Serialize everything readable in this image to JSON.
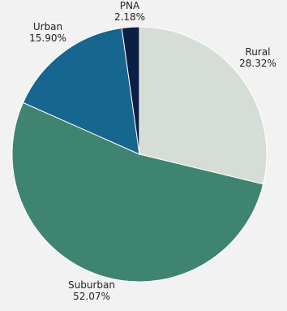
{
  "chart_data": {
    "type": "pie",
    "title": "",
    "slices": [
      {
        "label": "Rural",
        "value": 28.32,
        "value_label": "28.32%",
        "color": "#d6ddd6"
      },
      {
        "label": "Suburban",
        "value": 52.07,
        "value_label": "52.07%",
        "color": "#3f8470"
      },
      {
        "label": "Urban",
        "value": 15.9,
        "value_label": "15.90%",
        "color": "#17668f"
      },
      {
        "label": "PNA",
        "value": 2.18,
        "value_label": "2.18%",
        "color": "#0b1f45"
      }
    ],
    "start_angle": "top",
    "direction": "clockwise",
    "legend": "none"
  }
}
